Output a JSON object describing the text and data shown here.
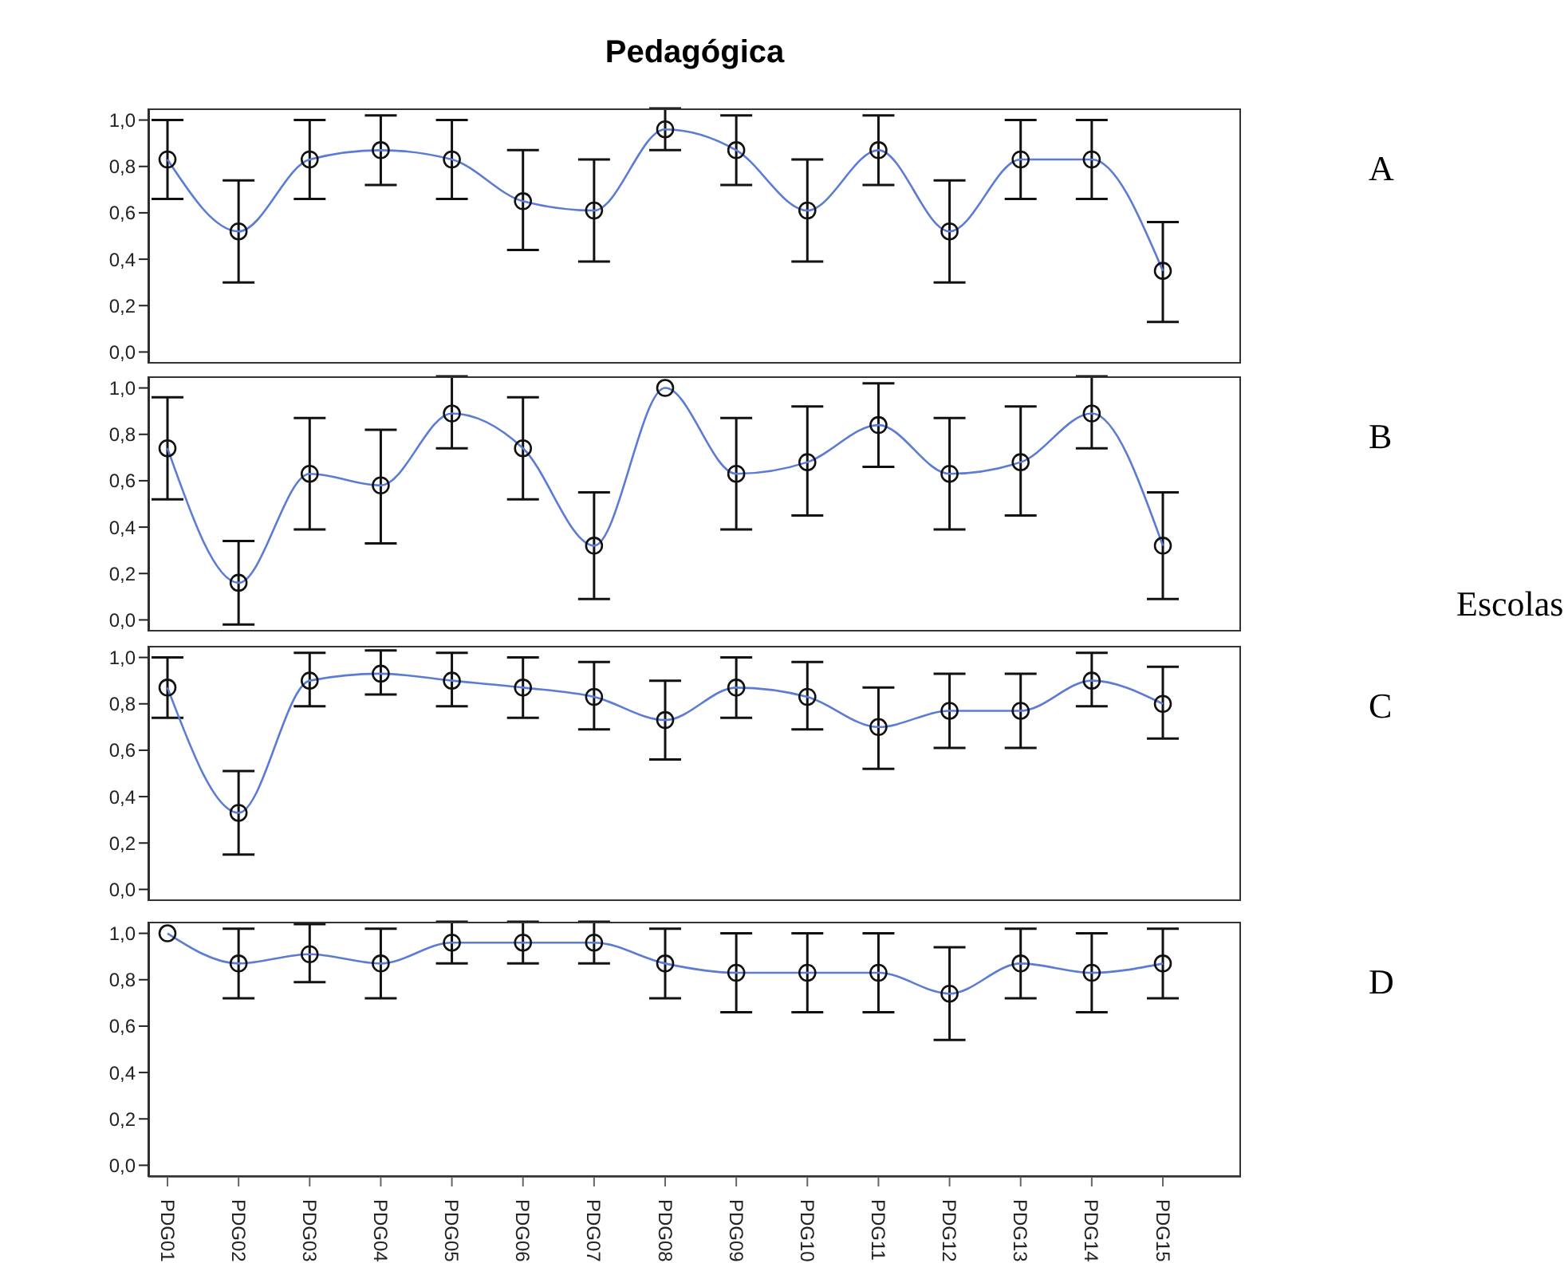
{
  "chart_data": [
    {
      "type": "line",
      "title": "Pedagógica",
      "annotations": [
        "A"
      ],
      "categories": [
        null,
        null,
        null,
        null,
        null,
        null,
        null,
        null,
        null,
        null,
        null,
        null,
        null,
        null,
        null
      ],
      "series": [
        {
          "color": "#5b7bd5",
          "values": [
            0.83,
            0.52,
            0.83,
            0.87,
            0.83,
            0.65,
            0.61,
            0.96,
            0.87,
            0.61,
            0.87,
            0.52,
            0.83,
            0.83,
            0.35
          ],
          "errors": [
            [
              0.66,
              1.0
            ],
            [
              0.3,
              0.74
            ],
            [
              0.66,
              1.0
            ],
            [
              0.72,
              1.02
            ],
            [
              0.66,
              1.0
            ],
            [
              0.44,
              0.87
            ],
            [
              0.39,
              0.83
            ],
            [
              0.87,
              1.05
            ],
            [
              0.72,
              1.02
            ],
            [
              0.39,
              0.83
            ],
            [
              0.72,
              1.02
            ],
            [
              0.3,
              0.74
            ],
            [
              0.66,
              1.0
            ],
            [
              0.66,
              1.0
            ],
            [
              0.13,
              0.56
            ]
          ]
        }
      ],
      "ylim": [
        -0.05,
        1.05
      ],
      "yticks": [
        {
          "value": 0,
          "label": "0,0"
        },
        {
          "value": 0.2,
          "label": "0,2"
        },
        {
          "value": 0.4,
          "label": "0,4"
        },
        {
          "value": 0.6,
          "label": "0,6"
        },
        {
          "value": 0.8,
          "label": "0,8"
        },
        {
          "value": 1,
          "label": "1,0"
        }
      ],
      "tick_labels": "y",
      "grid": false,
      "legend": false,
      "marker": "circle",
      "line_style": "solid"
    },
    {
      "type": "line",
      "annotations": [
        "B"
      ],
      "y2label": "Escolas",
      "categories": [
        null,
        null,
        null,
        null,
        null,
        null,
        null,
        null,
        null,
        null,
        null,
        null,
        null,
        null,
        null
      ],
      "series": [
        {
          "color": "#5b7bd5",
          "values": [
            0.74,
            0.16,
            0.63,
            0.58,
            0.89,
            0.74,
            0.32,
            1.0,
            0.63,
            0.68,
            0.84,
            0.63,
            0.68,
            0.89,
            0.32
          ],
          "errors": [
            [
              0.52,
              0.96
            ],
            [
              -0.02,
              0.34
            ],
            [
              0.39,
              0.87
            ],
            [
              0.33,
              0.82
            ],
            [
              0.74,
              1.05
            ],
            [
              0.52,
              0.96
            ],
            [
              0.09,
              0.55
            ],
            null,
            [
              0.39,
              0.87
            ],
            [
              0.45,
              0.92
            ],
            [
              0.66,
              1.02
            ],
            [
              0.39,
              0.87
            ],
            [
              0.45,
              0.92
            ],
            [
              0.74,
              1.05
            ],
            [
              0.09,
              0.55
            ]
          ]
        }
      ],
      "ylim": [
        -0.05,
        1.05
      ],
      "yticks": [
        {
          "value": 0,
          "label": "0,0"
        },
        {
          "value": 0.2,
          "label": "0,2"
        },
        {
          "value": 0.4,
          "label": "0,4"
        },
        {
          "value": 0.6,
          "label": "0,6"
        },
        {
          "value": 0.8,
          "label": "0,8"
        },
        {
          "value": 1,
          "label": "1,0"
        }
      ],
      "tick_labels": "y",
      "grid": false,
      "legend": false,
      "marker": "circle",
      "line_style": "solid"
    },
    {
      "type": "line",
      "annotations": [
        "C"
      ],
      "categories": [
        null,
        null,
        null,
        null,
        null,
        null,
        null,
        null,
        null,
        null,
        null,
        null,
        null,
        null,
        null
      ],
      "series": [
        {
          "color": "#5b7bd5",
          "values": [
            0.87,
            0.33,
            0.9,
            0.93,
            0.9,
            0.87,
            0.83,
            0.73,
            0.87,
            0.83,
            0.7,
            0.77,
            0.77,
            0.9,
            0.8
          ],
          "errors": [
            [
              0.74,
              1.0
            ],
            [
              0.15,
              0.51
            ],
            [
              0.79,
              1.02
            ],
            [
              0.84,
              1.03
            ],
            [
              0.79,
              1.02
            ],
            [
              0.74,
              1.0
            ],
            [
              0.69,
              0.98
            ],
            [
              0.56,
              0.9
            ],
            [
              0.74,
              1.0
            ],
            [
              0.69,
              0.98
            ],
            [
              0.52,
              0.87
            ],
            [
              0.61,
              0.93
            ],
            [
              0.61,
              0.93
            ],
            [
              0.79,
              1.02
            ],
            [
              0.65,
              0.96
            ]
          ]
        }
      ],
      "ylim": [
        -0.05,
        1.05
      ],
      "yticks": [
        {
          "value": 0,
          "label": "0,0"
        },
        {
          "value": 0.2,
          "label": "0,2"
        },
        {
          "value": 0.4,
          "label": "0,4"
        },
        {
          "value": 0.6,
          "label": "0,6"
        },
        {
          "value": 0.8,
          "label": "0,8"
        },
        {
          "value": 1,
          "label": "1,0"
        }
      ],
      "tick_labels": "y",
      "grid": false,
      "legend": false,
      "marker": "circle",
      "line_style": "solid"
    },
    {
      "type": "line",
      "annotations": [
        "D"
      ],
      "categories": [
        "PDG01",
        "PDG02",
        "PDG03",
        "PDG04",
        "PDG05",
        "PDG06",
        "PDG07",
        "PDG08",
        "PDG09",
        "PDG10",
        "PDG11",
        "PDG12",
        "PDG13",
        "PDG14",
        "PDG15"
      ],
      "series": [
        {
          "color": "#5b7bd5",
          "values": [
            1.0,
            0.87,
            0.91,
            0.87,
            0.96,
            0.96,
            0.96,
            0.87,
            0.83,
            0.83,
            0.83,
            0.74,
            0.87,
            0.83,
            0.87
          ],
          "errors": [
            null,
            [
              0.72,
              1.02
            ],
            [
              0.79,
              1.04
            ],
            [
              0.72,
              1.02
            ],
            [
              0.87,
              1.05
            ],
            [
              0.87,
              1.05
            ],
            [
              0.87,
              1.05
            ],
            [
              0.72,
              1.02
            ],
            [
              0.66,
              1.0
            ],
            [
              0.66,
              1.0
            ],
            [
              0.66,
              1.0
            ],
            [
              0.54,
              0.94
            ],
            [
              0.72,
              1.02
            ],
            [
              0.66,
              1.0
            ],
            [
              0.72,
              1.02
            ]
          ]
        }
      ],
      "ylim": [
        -0.05,
        1.05
      ],
      "yticks": [
        {
          "value": 0,
          "label": "0,0"
        },
        {
          "value": 0.2,
          "label": "0,2"
        },
        {
          "value": 0.4,
          "label": "0,4"
        },
        {
          "value": 0.6,
          "label": "0,6"
        },
        {
          "value": 0.8,
          "label": "0,8"
        },
        {
          "value": 1,
          "label": "1,0"
        }
      ],
      "grid": false,
      "legend": false,
      "marker": "circle",
      "line_style": "solid"
    }
  ]
}
